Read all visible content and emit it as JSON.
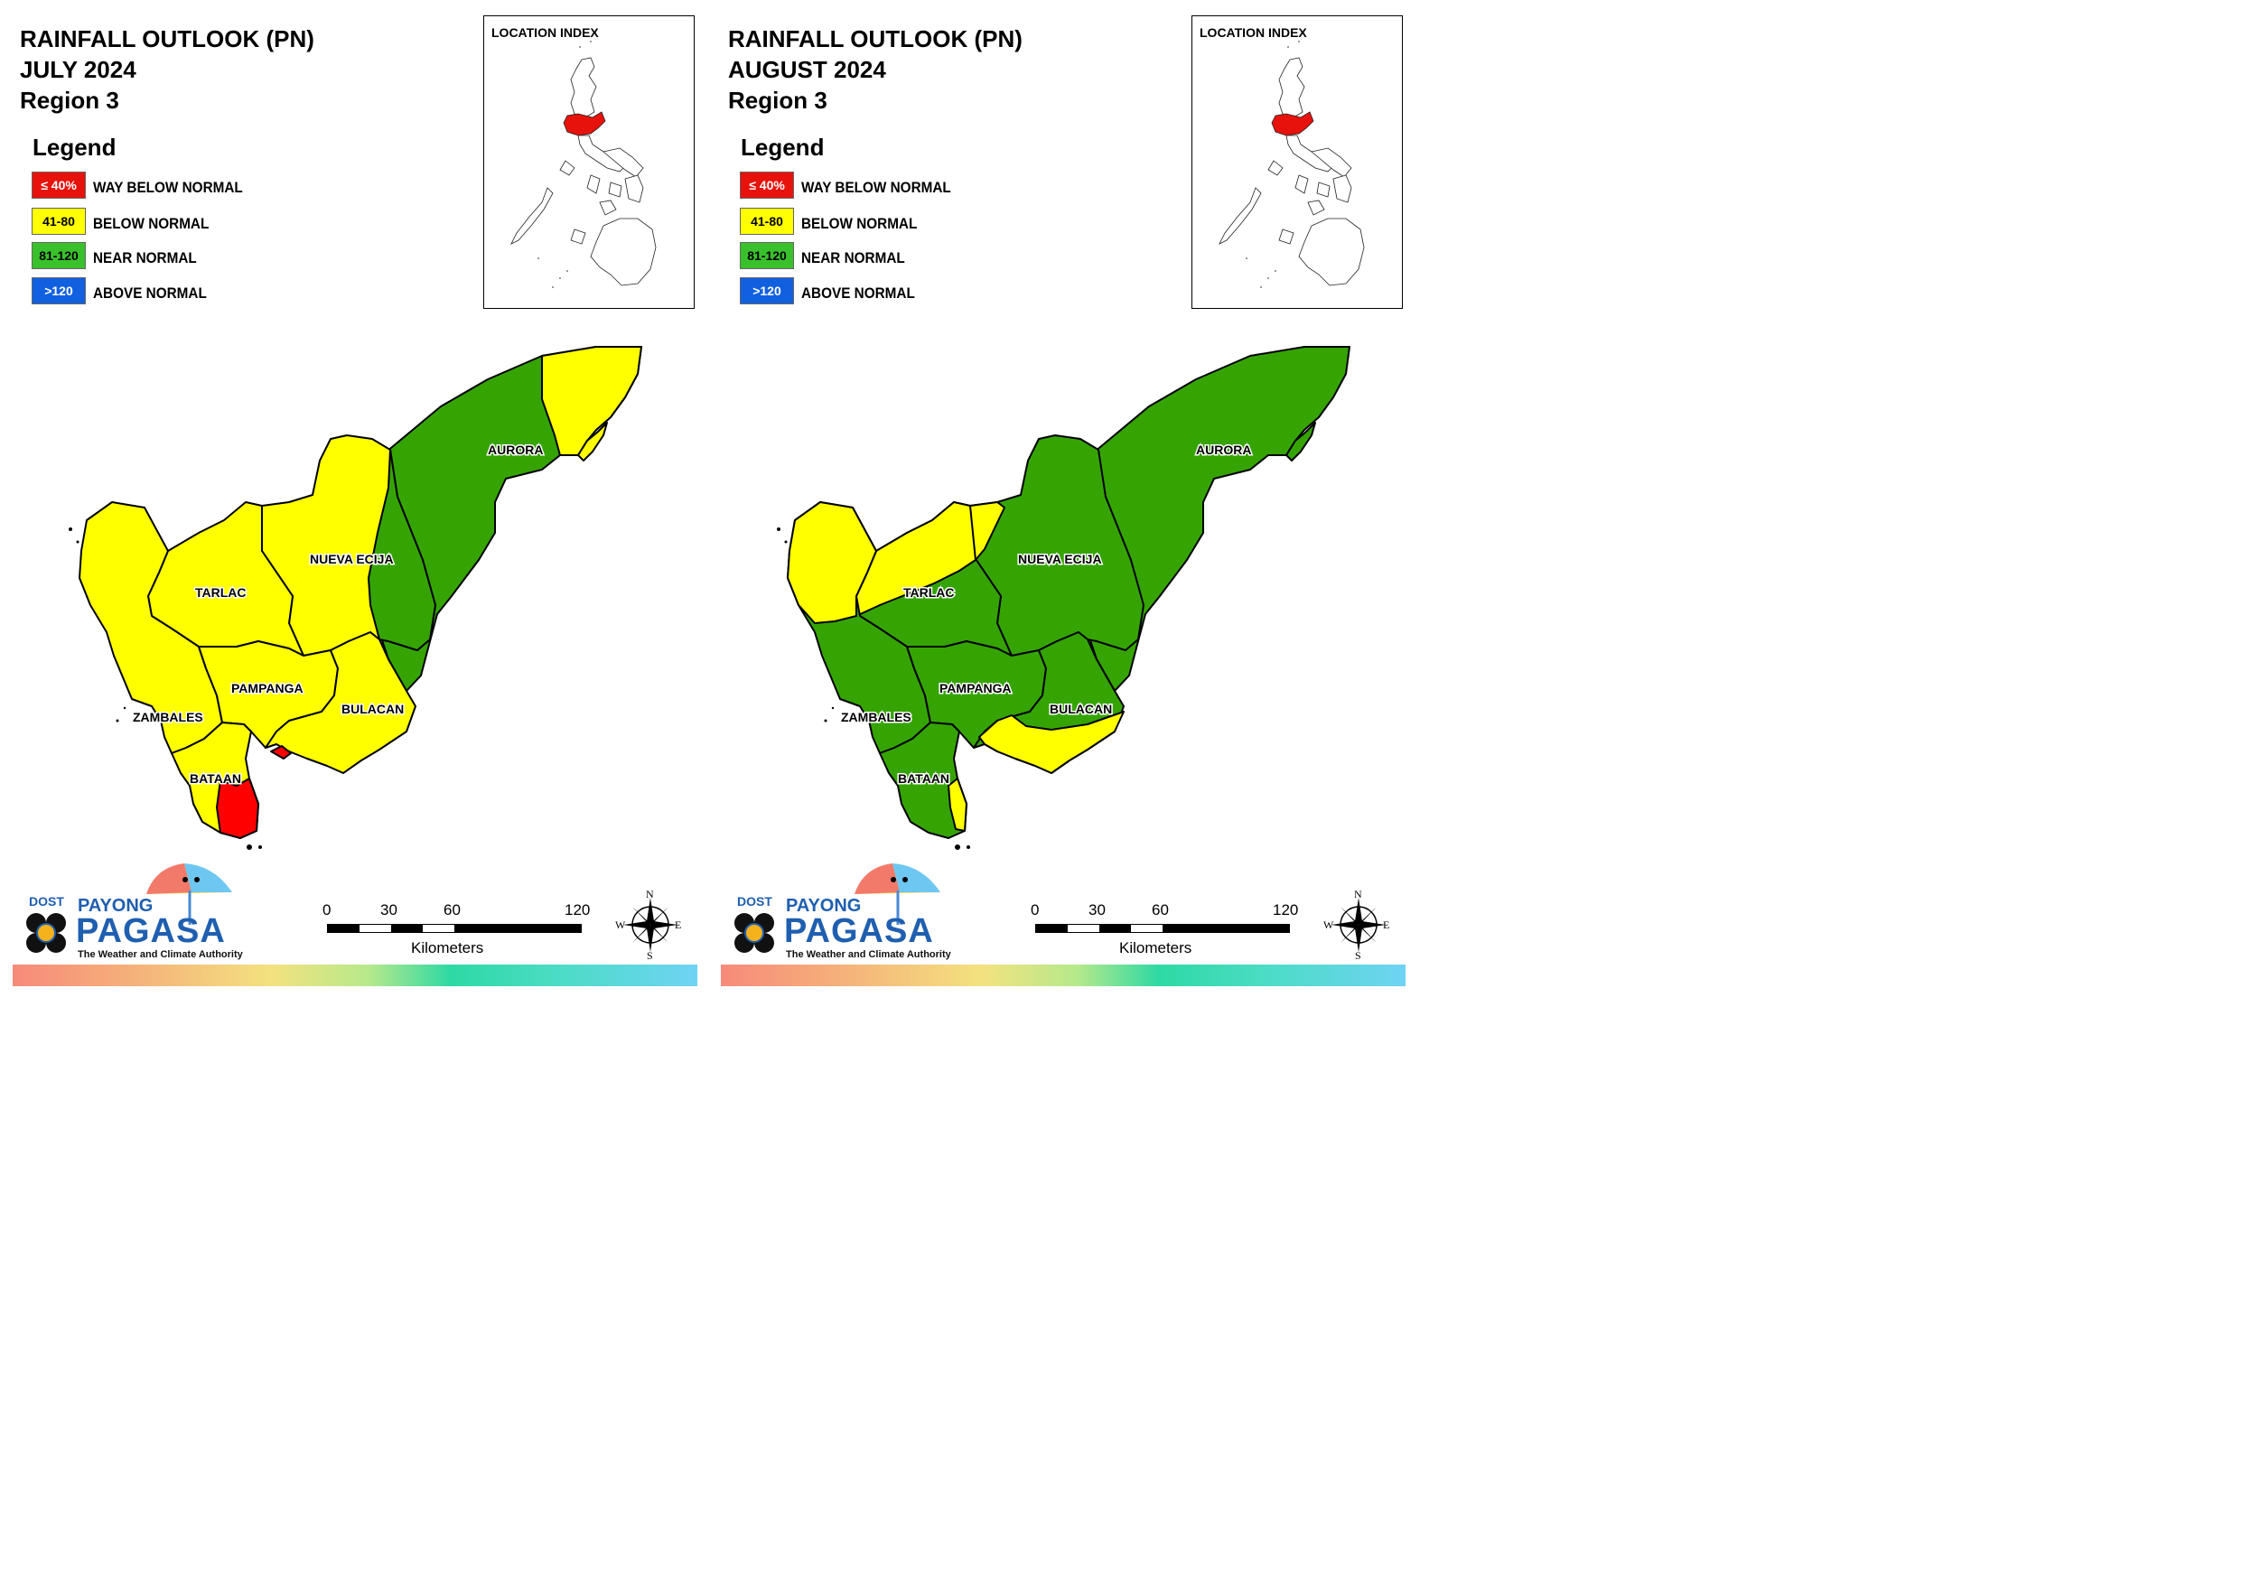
{
  "panels": [
    {
      "title_line1": "RAINFALL OUTLOOK (PN)",
      "title_line2": "JULY 2024",
      "title_line3": "Region 3",
      "legend_title": "Legend",
      "legend": [
        {
          "range": "≤ 40%",
          "label": "WAY BELOW NORMAL",
          "color": "#e8120c"
        },
        {
          "range": "41-80",
          "label": "BELOW NORMAL",
          "color": "#ffff00"
        },
        {
          "range": "81-120",
          "label": "NEAR NORMAL",
          "color": "#39c12b"
        },
        {
          "range": ">120",
          "label": "ABOVE NORMAL",
          "color": "#1060e0"
        }
      ],
      "inset_title": "LOCATION INDEX",
      "provinces": {
        "aurora": "AURORA",
        "nueva_ecija": "NUEVA ECIJA",
        "tarlac": "TARLAC",
        "pampanga": "PAMPANGA",
        "zambales": "ZAMBALES",
        "bulacan": "BULACAN",
        "bataan": "BATAAN"
      },
      "logo": {
        "dost": "DOST",
        "payong": "PAYONG",
        "pagasa": "PAGASA",
        "tagline": "The Weather and Climate Authority"
      },
      "scale": {
        "ticks": [
          "0",
          "30",
          "60",
          "120"
        ],
        "unit": "Kilometers"
      },
      "compass": {
        "n": "N",
        "e": "E",
        "s": "S",
        "w": "W"
      }
    },
    {
      "title_line1": "RAINFALL OUTLOOK (PN)",
      "title_line2": "AUGUST 2024",
      "title_line3": "Region 3",
      "legend_title": "Legend",
      "legend": [
        {
          "range": "≤ 40%",
          "label": "WAY BELOW NORMAL",
          "color": "#e8120c"
        },
        {
          "range": "41-80",
          "label": "BELOW NORMAL",
          "color": "#ffff00"
        },
        {
          "range": "81-120",
          "label": "NEAR NORMAL",
          "color": "#39c12b"
        },
        {
          "range": ">120",
          "label": "ABOVE NORMAL",
          "color": "#1060e0"
        }
      ],
      "inset_title": "LOCATION INDEX",
      "provinces": {
        "aurora": "AURORA",
        "nueva_ecija": "NUEVA ECIJA",
        "tarlac": "TARLAC",
        "pampanga": "PAMPANGA",
        "zambales": "ZAMBALES",
        "bulacan": "BULACAN",
        "bataan": "BATAAN"
      },
      "logo": {
        "dost": "DOST",
        "payong": "PAYONG",
        "pagasa": "PAGASA",
        "tagline": "The Weather and Climate Authority"
      },
      "scale": {
        "ticks": [
          "0",
          "30",
          "60",
          "120"
        ],
        "unit": "Kilometers"
      },
      "compass": {
        "n": "N",
        "e": "E",
        "s": "S",
        "w": "W"
      }
    }
  ],
  "map_colors": {
    "yellow": "#ffff00",
    "green": "#35a402",
    "red": "#ff0000",
    "highlight": "#e8120c"
  }
}
